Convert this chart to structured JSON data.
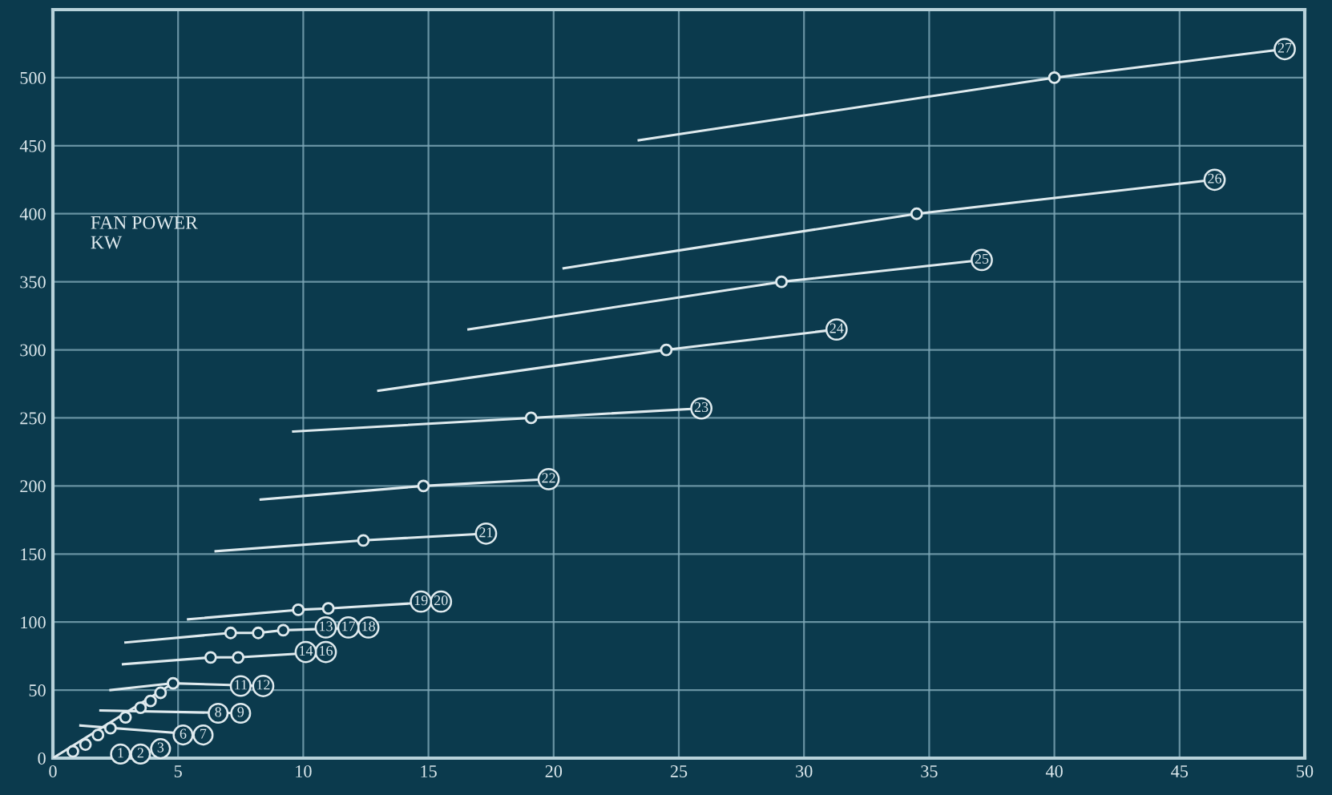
{
  "chart_data": {
    "type": "line",
    "ylabel": "FAN POWER\nKW",
    "xlim": [
      0,
      50
    ],
    "xticks": [
      0,
      5,
      10,
      15,
      20,
      25,
      30,
      35,
      40,
      45,
      50
    ],
    "ylim": [
      0,
      550
    ],
    "yticks": [
      0,
      50,
      100,
      150,
      200,
      250,
      300,
      350,
      400,
      450,
      500
    ],
    "grid": true,
    "line_style": "solid",
    "series": [
      {
        "color": "#dfeaee",
        "x": [
          23.4,
          40,
          49.2
        ],
        "values": [
          454,
          500,
          521
        ]
      },
      {
        "color": "#dfeaee",
        "x": [
          20.4,
          34.5,
          46.4
        ],
        "values": [
          360,
          400,
          425
        ]
      },
      {
        "color": "#dfeaee",
        "x": [
          16.6,
          29.1,
          37.1
        ],
        "values": [
          315,
          350,
          366
        ]
      },
      {
        "color": "#dfeaee",
        "x": [
          13.0,
          24.5,
          31.3
        ],
        "values": [
          270,
          300,
          315
        ]
      },
      {
        "color": "#dfeaee",
        "x": [
          9.6,
          19.1,
          25.9
        ],
        "values": [
          240,
          250,
          257
        ]
      },
      {
        "color": "#dfeaee",
        "x": [
          8.3,
          14.8,
          19.8
        ],
        "values": [
          190,
          200,
          205
        ]
      },
      {
        "color": "#dfeaee",
        "x": [
          6.5,
          12.4,
          17.3
        ],
        "values": [
          152,
          160,
          165
        ]
      },
      {
        "color": "#dfeaee",
        "x": [
          5.4,
          9.8,
          11.0,
          15.5
        ],
        "values": [
          102,
          109,
          110,
          115
        ]
      },
      {
        "color": "#dfeaee",
        "x": [
          2.9,
          7.1,
          8.2,
          9.2,
          12.6
        ],
        "values": [
          85,
          92,
          92,
          94,
          96
        ]
      },
      {
        "color": "#dfeaee",
        "x": [
          2.8,
          6.3,
          7.4,
          10.9
        ],
        "values": [
          69,
          74,
          74,
          78
        ]
      },
      {
        "color": "#dfeaee",
        "x": [
          2.3,
          4.8,
          8.4
        ],
        "values": [
          50,
          55,
          53
        ]
      },
      {
        "color": "#dfeaee",
        "x": [
          1.9,
          7.5
        ],
        "values": [
          35,
          33
        ]
      },
      {
        "color": "#dfeaee",
        "x": [
          1.1,
          6.0
        ],
        "values": [
          24,
          17
        ]
      },
      {
        "color": "#dfeaee",
        "x": [
          0.0,
          4.8
        ],
        "values": [
          0,
          55
        ]
      },
      {
        "color": "#dfeaee",
        "type": "scatter",
        "marker": "circle",
        "x": [
          40,
          34.5,
          29.1,
          24.5,
          19.1,
          14.8,
          12.4,
          9.8,
          11.0,
          7.1,
          8.2,
          9.2,
          6.3,
          7.4,
          4.8,
          4.3,
          3.9,
          3.5,
          2.9,
          2.3,
          1.8,
          1.3,
          0.8
        ],
        "values": [
          500,
          400,
          350,
          300,
          250,
          200,
          160,
          109,
          110,
          92,
          92,
          94,
          74,
          74,
          55,
          48,
          42,
          37,
          30,
          22,
          17,
          10,
          5
        ]
      }
    ],
    "annotations": [
      {
        "text": "27",
        "x": 49.2,
        "y": 521
      },
      {
        "text": "26",
        "x": 46.4,
        "y": 425
      },
      {
        "text": "25",
        "x": 37.1,
        "y": 366
      },
      {
        "text": "24",
        "x": 31.3,
        "y": 315
      },
      {
        "text": "23",
        "x": 25.9,
        "y": 257
      },
      {
        "text": "22",
        "x": 19.8,
        "y": 205
      },
      {
        "text": "21",
        "x": 17.3,
        "y": 165
      },
      {
        "text": "20",
        "x": 15.5,
        "y": 115
      },
      {
        "text": "19",
        "x": 14.7,
        "y": 115
      },
      {
        "text": "18",
        "x": 12.6,
        "y": 96
      },
      {
        "text": "17",
        "x": 11.8,
        "y": 96
      },
      {
        "text": "13",
        "x": 10.9,
        "y": 96
      },
      {
        "text": "16",
        "x": 10.9,
        "y": 78
      },
      {
        "text": "14",
        "x": 10.1,
        "y": 78
      },
      {
        "text": "12",
        "x": 8.4,
        "y": 53
      },
      {
        "text": "11",
        "x": 7.5,
        "y": 53
      },
      {
        "text": "9",
        "x": 7.5,
        "y": 33
      },
      {
        "text": "8",
        "x": 6.6,
        "y": 33
      },
      {
        "text": "7",
        "x": 6.0,
        "y": 17
      },
      {
        "text": "6",
        "x": 5.2,
        "y": 17
      },
      {
        "text": "3",
        "x": 4.3,
        "y": 7
      },
      {
        "text": "2",
        "x": 3.5,
        "y": 3
      },
      {
        "text": "1",
        "x": 2.7,
        "y": 3
      }
    ]
  }
}
